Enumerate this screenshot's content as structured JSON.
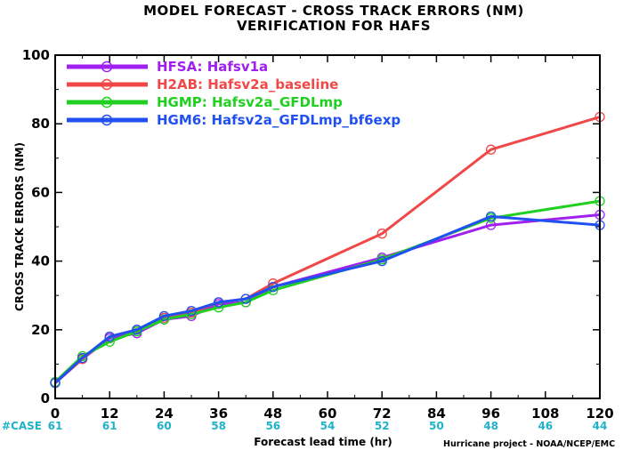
{
  "chart_data": {
    "type": "line",
    "title": "MODEL FORECAST - CROSS TRACK ERRORS (NM)",
    "subtitle": "VERIFICATION FOR HAFS",
    "xlabel": "Forecast lead time (hr)",
    "ylabel": "CROSS TRACK ERRORS (NM)",
    "xlim": [
      0,
      120
    ],
    "ylim": [
      0,
      100
    ],
    "xticks": [
      0,
      12,
      24,
      36,
      48,
      60,
      72,
      84,
      96,
      108,
      120
    ],
    "yticks": [
      0,
      20,
      40,
      60,
      80,
      100
    ],
    "grid": false,
    "legend_position": "top-left",
    "case_label": "#CASE",
    "case_color": "#20b2c8",
    "case_counts": [
      61,
      61,
      60,
      58,
      56,
      54,
      52,
      50,
      48,
      46,
      44
    ],
    "credit": "Hurricane project - NOAA/NCEP/EMC",
    "series": [
      {
        "name": "HFSA: Hafsv1a",
        "color": "#a020f0",
        "x": [
          0,
          6,
          12,
          18,
          24,
          30,
          36,
          42,
          48,
          72,
          96,
          120
        ],
        "values": [
          4.5,
          11.5,
          17.5,
          19.0,
          23.0,
          24.0,
          27.5,
          28.0,
          32.5,
          41.0,
          50.5,
          53.5
        ]
      },
      {
        "name": "H2AB: Hafsv2a_baseline",
        "color": "#f04848",
        "x": [
          0,
          6,
          12,
          18,
          24,
          30,
          36,
          42,
          48,
          72,
          96,
          120
        ],
        "values": [
          4.5,
          11.5,
          18.0,
          20.0,
          23.5,
          25.0,
          28.0,
          29.0,
          33.5,
          48.0,
          72.5,
          82.0
        ]
      },
      {
        "name": "HGMP: Hafsv2a_GFDLmp",
        "color": "#20d020",
        "x": [
          0,
          6,
          12,
          18,
          24,
          30,
          36,
          42,
          48,
          72,
          96,
          120
        ],
        "values": [
          4.8,
          12.3,
          16.5,
          19.5,
          23.0,
          24.5,
          26.5,
          28.0,
          31.5,
          40.5,
          52.5,
          57.5
        ]
      },
      {
        "name": "HGM6: Hafsv2a_GFDLmp_bf6exp",
        "color": "#2050f0",
        "x": [
          0,
          6,
          12,
          18,
          24,
          30,
          36,
          42,
          48,
          72,
          96,
          120
        ],
        "values": [
          4.5,
          11.8,
          18.0,
          20.0,
          24.0,
          25.5,
          28.0,
          29.0,
          32.5,
          40.0,
          53.0,
          50.5
        ]
      }
    ]
  }
}
